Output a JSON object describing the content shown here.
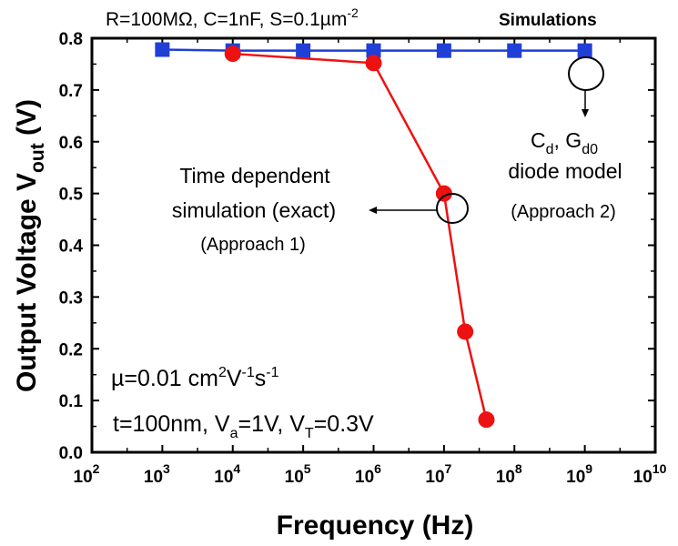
{
  "chart_data": {
    "type": "line",
    "header_left": "R=100MΩ, C=1nF, S=0.1µm",
    "header_left_sup": "-2",
    "header_right": "Simulations",
    "xlabel": "Frequency (Hz)",
    "ylabel_main": "Output Voltage V",
    "ylabel_sub": "out",
    "ylabel_unit": " (V)",
    "x_scale": "log",
    "xlim": [
      100,
      10000000000
    ],
    "ylim": [
      0.0,
      0.8
    ],
    "x_ticks": [
      {
        "base": "10",
        "exp": "2",
        "value": 100
      },
      {
        "base": "10",
        "exp": "3",
        "value": 1000
      },
      {
        "base": "10",
        "exp": "4",
        "value": 10000
      },
      {
        "base": "10",
        "exp": "5",
        "value": 100000
      },
      {
        "base": "10",
        "exp": "6",
        "value": 1000000
      },
      {
        "base": "10",
        "exp": "7",
        "value": 10000000
      },
      {
        "base": "10",
        "exp": "8",
        "value": 100000000
      },
      {
        "base": "10",
        "exp": "9",
        "value": 1000000000
      },
      {
        "base": "10",
        "exp": "10",
        "value": 10000000000
      }
    ],
    "y_ticks": [
      "0.0",
      "0.1",
      "0.2",
      "0.3",
      "0.4",
      "0.5",
      "0.6",
      "0.7",
      "0.8"
    ],
    "grid": false,
    "series": [
      {
        "color": "#1f3fd6",
        "marker": "square",
        "x": [
          1000,
          10000,
          100000,
          1000000,
          10000000,
          100000000,
          1000000000
        ],
        "y": [
          0.778,
          0.776,
          0.776,
          0.776,
          0.776,
          0.776,
          0.776
        ]
      },
      {
        "color": "#ee1111",
        "marker": "circle",
        "x": [
          10000,
          1000000,
          10000000,
          20000000,
          40000000
        ],
        "y": [
          0.77,
          0.752,
          0.5,
          0.233,
          0.063
        ]
      }
    ],
    "annotations": {
      "exact_line1": "Time dependent",
      "exact_line2": "simulation (exact)",
      "exact_line3": "(Approach 1)",
      "model_line1_a": "C",
      "model_line1_a_sub": "d",
      "model_line1_b": ", G",
      "model_line1_b_sub": "d0",
      "model_line2": "diode model",
      "model_line3": "(Approach 2)",
      "param_mu": "µ=0.01 cm",
      "param_mu_sup1": "2",
      "param_mu_V": "V",
      "param_mu_sup2": "-1",
      "param_mu_s": "s",
      "param_mu_sup3": "-1",
      "param_t": "t=100nm, V",
      "param_t_sub1": "a",
      "param_t_mid": "=1V, V",
      "param_t_sub2": "T",
      "param_t_end": "=0.3V"
    }
  }
}
